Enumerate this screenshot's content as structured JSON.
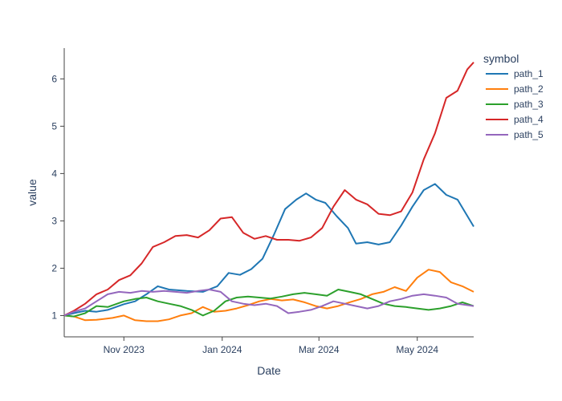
{
  "chart_data": {
    "type": "line",
    "xlabel": "Date",
    "ylabel": "value",
    "xlim": [
      "2023-09-25",
      "2024-06-05"
    ],
    "ylim": [
      0.55,
      6.65
    ],
    "x_ticks": [
      {
        "date": "2023-11-01",
        "label": "Nov 2023"
      },
      {
        "date": "2024-01-01",
        "label": "Jan 2024"
      },
      {
        "date": "2024-03-01",
        "label": "Mar 2024"
      },
      {
        "date": "2024-05-01",
        "label": "May 2024"
      }
    ],
    "y_ticks": [
      1,
      2,
      3,
      4,
      5,
      6
    ],
    "legend": {
      "title": "symbol",
      "position": "right"
    },
    "series": [
      {
        "name": "path_1",
        "color": "#1f77b4",
        "points": [
          [
            "2023-09-25",
            1.0
          ],
          [
            "2023-10-01",
            1.05
          ],
          [
            "2023-10-08",
            1.1
          ],
          [
            "2023-10-15",
            1.08
          ],
          [
            "2023-10-22",
            1.12
          ],
          [
            "2023-11-01",
            1.24
          ],
          [
            "2023-11-08",
            1.3
          ],
          [
            "2023-11-15",
            1.45
          ],
          [
            "2023-11-22",
            1.62
          ],
          [
            "2023-11-29",
            1.55
          ],
          [
            "2023-12-10",
            1.52
          ],
          [
            "2023-12-20",
            1.5
          ],
          [
            "2023-12-29",
            1.62
          ],
          [
            "2024-01-05",
            1.9
          ],
          [
            "2024-01-12",
            1.86
          ],
          [
            "2024-01-19",
            1.98
          ],
          [
            "2024-01-26",
            2.2
          ],
          [
            "2024-02-02",
            2.7
          ],
          [
            "2024-02-09",
            3.25
          ],
          [
            "2024-02-16",
            3.45
          ],
          [
            "2024-02-22",
            3.58
          ],
          [
            "2024-02-28",
            3.45
          ],
          [
            "2024-03-05",
            3.38
          ],
          [
            "2024-03-12",
            3.1
          ],
          [
            "2024-03-19",
            2.85
          ],
          [
            "2024-03-24",
            2.52
          ],
          [
            "2024-03-31",
            2.55
          ],
          [
            "2024-04-07",
            2.5
          ],
          [
            "2024-04-14",
            2.55
          ],
          [
            "2024-04-21",
            2.9
          ],
          [
            "2024-04-28",
            3.3
          ],
          [
            "2024-05-05",
            3.65
          ],
          [
            "2024-05-12",
            3.78
          ],
          [
            "2024-05-19",
            3.55
          ],
          [
            "2024-05-26",
            3.45
          ],
          [
            "2024-06-05",
            2.88
          ]
        ]
      },
      {
        "name": "path_2",
        "color": "#ff7f0e",
        "points": [
          [
            "2023-09-25",
            1.0
          ],
          [
            "2023-10-01",
            0.98
          ],
          [
            "2023-10-08",
            0.9
          ],
          [
            "2023-10-15",
            0.91
          ],
          [
            "2023-10-25",
            0.95
          ],
          [
            "2023-11-01",
            1.0
          ],
          [
            "2023-11-08",
            0.9
          ],
          [
            "2023-11-15",
            0.88
          ],
          [
            "2023-11-22",
            0.88
          ],
          [
            "2023-11-29",
            0.92
          ],
          [
            "2023-12-06",
            1.0
          ],
          [
            "2023-12-13",
            1.05
          ],
          [
            "2023-12-20",
            1.18
          ],
          [
            "2023-12-27",
            1.08
          ],
          [
            "2024-01-03",
            1.1
          ],
          [
            "2024-01-10",
            1.15
          ],
          [
            "2024-01-17",
            1.22
          ],
          [
            "2024-01-24",
            1.3
          ],
          [
            "2024-01-31",
            1.35
          ],
          [
            "2024-02-07",
            1.32
          ],
          [
            "2024-02-14",
            1.34
          ],
          [
            "2024-02-21",
            1.28
          ],
          [
            "2024-02-28",
            1.2
          ],
          [
            "2024-03-06",
            1.15
          ],
          [
            "2024-03-13",
            1.2
          ],
          [
            "2024-03-20",
            1.28
          ],
          [
            "2024-03-27",
            1.35
          ],
          [
            "2024-04-03",
            1.45
          ],
          [
            "2024-04-10",
            1.5
          ],
          [
            "2024-04-17",
            1.6
          ],
          [
            "2024-04-24",
            1.52
          ],
          [
            "2024-05-01",
            1.8
          ],
          [
            "2024-05-08",
            1.97
          ],
          [
            "2024-05-15",
            1.92
          ],
          [
            "2024-05-22",
            1.7
          ],
          [
            "2024-05-29",
            1.62
          ],
          [
            "2024-06-05",
            1.5
          ]
        ]
      },
      {
        "name": "path_3",
        "color": "#2ca02c",
        "points": [
          [
            "2023-09-25",
            1.0
          ],
          [
            "2023-10-01",
            0.98
          ],
          [
            "2023-10-08",
            1.05
          ],
          [
            "2023-10-15",
            1.2
          ],
          [
            "2023-10-22",
            1.18
          ],
          [
            "2023-11-01",
            1.3
          ],
          [
            "2023-11-08",
            1.35
          ],
          [
            "2023-11-15",
            1.38
          ],
          [
            "2023-11-22",
            1.3
          ],
          [
            "2023-11-29",
            1.25
          ],
          [
            "2023-12-06",
            1.2
          ],
          [
            "2023-12-13",
            1.12
          ],
          [
            "2023-12-20",
            1.0
          ],
          [
            "2023-12-27",
            1.1
          ],
          [
            "2024-01-03",
            1.3
          ],
          [
            "2024-01-10",
            1.38
          ],
          [
            "2024-01-17",
            1.4
          ],
          [
            "2024-01-24",
            1.38
          ],
          [
            "2024-01-31",
            1.36
          ],
          [
            "2024-02-07",
            1.4
          ],
          [
            "2024-02-14",
            1.45
          ],
          [
            "2024-02-21",
            1.48
          ],
          [
            "2024-02-28",
            1.45
          ],
          [
            "2024-03-06",
            1.42
          ],
          [
            "2024-03-13",
            1.55
          ],
          [
            "2024-03-20",
            1.5
          ],
          [
            "2024-03-27",
            1.45
          ],
          [
            "2024-04-03",
            1.35
          ],
          [
            "2024-04-10",
            1.25
          ],
          [
            "2024-04-17",
            1.2
          ],
          [
            "2024-04-24",
            1.18
          ],
          [
            "2024-05-01",
            1.15
          ],
          [
            "2024-05-08",
            1.12
          ],
          [
            "2024-05-15",
            1.15
          ],
          [
            "2024-05-22",
            1.2
          ],
          [
            "2024-05-29",
            1.28
          ],
          [
            "2024-06-05",
            1.2
          ]
        ]
      },
      {
        "name": "path_4",
        "color": "#d62728",
        "points": [
          [
            "2023-09-25",
            1.0
          ],
          [
            "2023-10-01",
            1.1
          ],
          [
            "2023-10-08",
            1.25
          ],
          [
            "2023-10-15",
            1.45
          ],
          [
            "2023-10-22",
            1.55
          ],
          [
            "2023-10-29",
            1.75
          ],
          [
            "2023-11-05",
            1.85
          ],
          [
            "2023-11-12",
            2.1
          ],
          [
            "2023-11-19",
            2.45
          ],
          [
            "2023-11-26",
            2.55
          ],
          [
            "2023-12-03",
            2.68
          ],
          [
            "2023-12-10",
            2.7
          ],
          [
            "2023-12-17",
            2.65
          ],
          [
            "2023-12-24",
            2.8
          ],
          [
            "2023-12-31",
            3.05
          ],
          [
            "2024-01-07",
            3.08
          ],
          [
            "2024-01-14",
            2.75
          ],
          [
            "2024-01-21",
            2.62
          ],
          [
            "2024-01-28",
            2.68
          ],
          [
            "2024-02-04",
            2.6
          ],
          [
            "2024-02-11",
            2.6
          ],
          [
            "2024-02-18",
            2.58
          ],
          [
            "2024-02-25",
            2.65
          ],
          [
            "2024-03-03",
            2.85
          ],
          [
            "2024-03-10",
            3.3
          ],
          [
            "2024-03-17",
            3.65
          ],
          [
            "2024-03-24",
            3.45
          ],
          [
            "2024-03-31",
            3.35
          ],
          [
            "2024-04-07",
            3.15
          ],
          [
            "2024-04-14",
            3.12
          ],
          [
            "2024-04-21",
            3.2
          ],
          [
            "2024-04-28",
            3.6
          ],
          [
            "2024-05-05",
            4.3
          ],
          [
            "2024-05-12",
            4.85
          ],
          [
            "2024-05-19",
            5.6
          ],
          [
            "2024-05-26",
            5.75
          ],
          [
            "2024-06-01",
            6.2
          ],
          [
            "2024-06-05",
            6.35
          ]
        ]
      },
      {
        "name": "path_5",
        "color": "#9467bd",
        "points": [
          [
            "2023-09-25",
            1.0
          ],
          [
            "2023-10-01",
            1.08
          ],
          [
            "2023-10-08",
            1.15
          ],
          [
            "2023-10-15",
            1.3
          ],
          [
            "2023-10-22",
            1.45
          ],
          [
            "2023-10-29",
            1.5
          ],
          [
            "2023-11-05",
            1.48
          ],
          [
            "2023-11-12",
            1.52
          ],
          [
            "2023-11-19",
            1.5
          ],
          [
            "2023-11-26",
            1.52
          ],
          [
            "2023-12-03",
            1.5
          ],
          [
            "2023-12-10",
            1.48
          ],
          [
            "2023-12-17",
            1.52
          ],
          [
            "2023-12-24",
            1.55
          ],
          [
            "2023-12-31",
            1.5
          ],
          [
            "2024-01-07",
            1.3
          ],
          [
            "2024-01-14",
            1.25
          ],
          [
            "2024-01-21",
            1.22
          ],
          [
            "2024-01-28",
            1.25
          ],
          [
            "2024-02-04",
            1.2
          ],
          [
            "2024-02-11",
            1.05
          ],
          [
            "2024-02-18",
            1.08
          ],
          [
            "2024-02-25",
            1.12
          ],
          [
            "2024-03-03",
            1.2
          ],
          [
            "2024-03-10",
            1.3
          ],
          [
            "2024-03-17",
            1.25
          ],
          [
            "2024-03-24",
            1.2
          ],
          [
            "2024-03-31",
            1.15
          ],
          [
            "2024-04-07",
            1.2
          ],
          [
            "2024-04-14",
            1.3
          ],
          [
            "2024-04-21",
            1.35
          ],
          [
            "2024-04-28",
            1.42
          ],
          [
            "2024-05-05",
            1.45
          ],
          [
            "2024-05-12",
            1.42
          ],
          [
            "2024-05-19",
            1.38
          ],
          [
            "2024-05-26",
            1.25
          ],
          [
            "2024-06-05",
            1.2
          ]
        ]
      }
    ]
  }
}
